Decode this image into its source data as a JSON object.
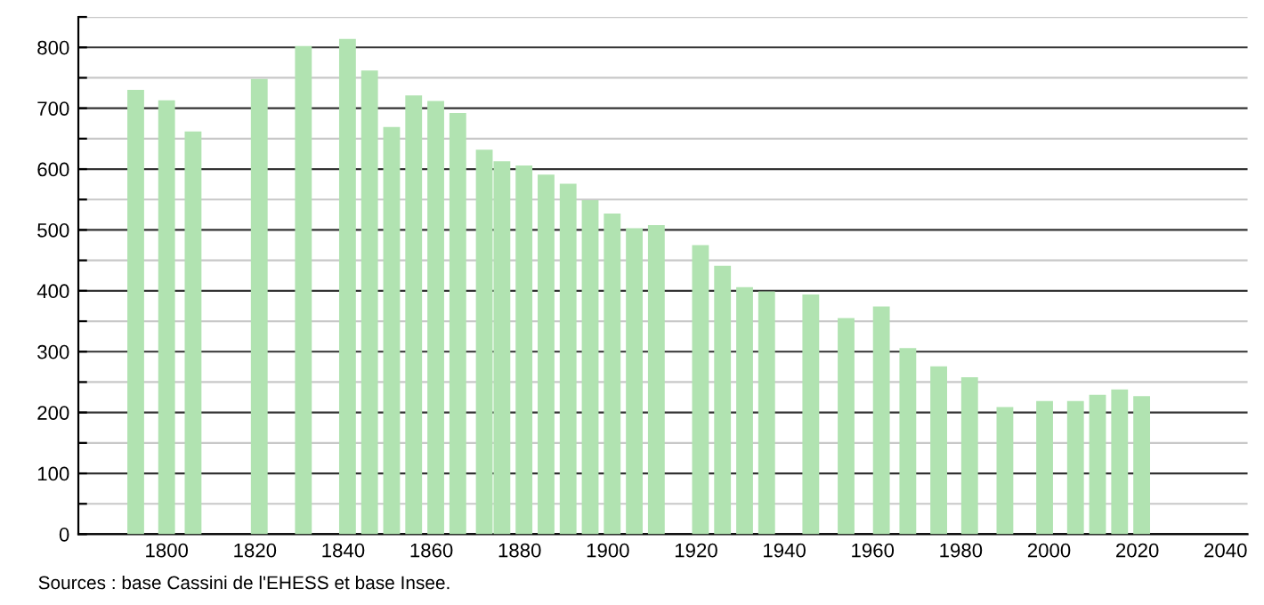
{
  "chart_data": {
    "type": "bar",
    "color": "#b1e3b1",
    "x": [
      1793,
      1800,
      1806,
      1821,
      1831,
      1841,
      1846,
      1851,
      1856,
      1861,
      1866,
      1872,
      1876,
      1881,
      1886,
      1891,
      1896,
      1901,
      1906,
      1911,
      1921,
      1926,
      1931,
      1936,
      1946,
      1954,
      1962,
      1968,
      1975,
      1982,
      1990,
      1999,
      2006,
      2011,
      2016,
      2021
    ],
    "values": [
      730,
      713,
      662,
      748,
      802,
      814,
      762,
      669,
      721,
      712,
      692,
      632,
      613,
      606,
      591,
      576,
      549,
      527,
      503,
      508,
      475,
      441,
      406,
      399,
      394,
      355,
      374,
      306,
      276,
      258,
      209,
      219,
      219,
      229,
      238,
      227
    ],
    "xlim": [
      1780,
      2045
    ],
    "xticks": [
      1800,
      1820,
      1840,
      1860,
      1880,
      1900,
      1920,
      1940,
      1960,
      1980,
      2000,
      2020,
      2040
    ],
    "ylim": [
      0,
      850
    ],
    "yticks": [
      0,
      {
        "value": 50,
        "label": null
      },
      100,
      {
        "value": 150,
        "label": null
      },
      200,
      {
        "value": 250,
        "label": null
      },
      300,
      {
        "value": 350,
        "label": null
      },
      400,
      {
        "value": 450,
        "label": null
      },
      500,
      {
        "value": 550,
        "label": null
      },
      600,
      {
        "value": 650,
        "label": null
      },
      700,
      {
        "value": 750,
        "label": null
      },
      800,
      {
        "value": 850,
        "label": null
      }
    ],
    "grid": "y",
    "annotations": [
      "Sources : base Cassini de l'EHESS et base Insee."
    ]
  }
}
